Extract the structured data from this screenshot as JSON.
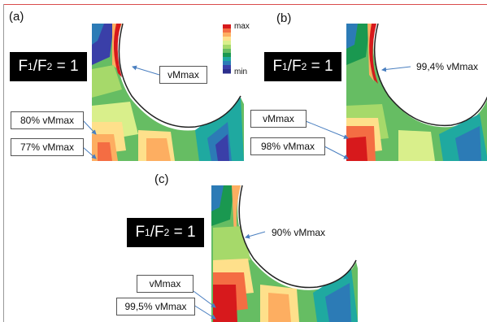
{
  "panels": [
    {
      "label": "(a)",
      "ratio_prefix": "F",
      "ratio_sub1": "1",
      "ratio_mid": "/F",
      "ratio_sub2": "2",
      "ratio_suffix": " = 1",
      "callouts": [
        "vMmax",
        "80% vMmax",
        "77% vMmax"
      ]
    },
    {
      "label": "(b)",
      "ratio_prefix": "F",
      "ratio_sub1": "1",
      "ratio_mid": "/F",
      "ratio_sub2": "2",
      "ratio_suffix": " = 1",
      "callouts": [
        "99,4% vMmax",
        "vMmax",
        "98% vMmax"
      ]
    },
    {
      "label": "(c)",
      "ratio_prefix": "F",
      "ratio_sub1": "1",
      "ratio_mid": "/F",
      "ratio_sub2": "2",
      "ratio_suffix": " = 1",
      "callouts": [
        "90% vMmax",
        "vMmax",
        "99,5% vMmax"
      ]
    }
  ],
  "legend": {
    "max_label": "max",
    "min_label": "min",
    "colors": [
      "#d7191c",
      "#f46d43",
      "#fdae61",
      "#fee08b",
      "#d9ef8b",
      "#a6d96a",
      "#66bd63",
      "#1a9850",
      "#1fa9a0",
      "#2c7bb6",
      "#3a3fa8",
      "#2b2e8c"
    ]
  }
}
